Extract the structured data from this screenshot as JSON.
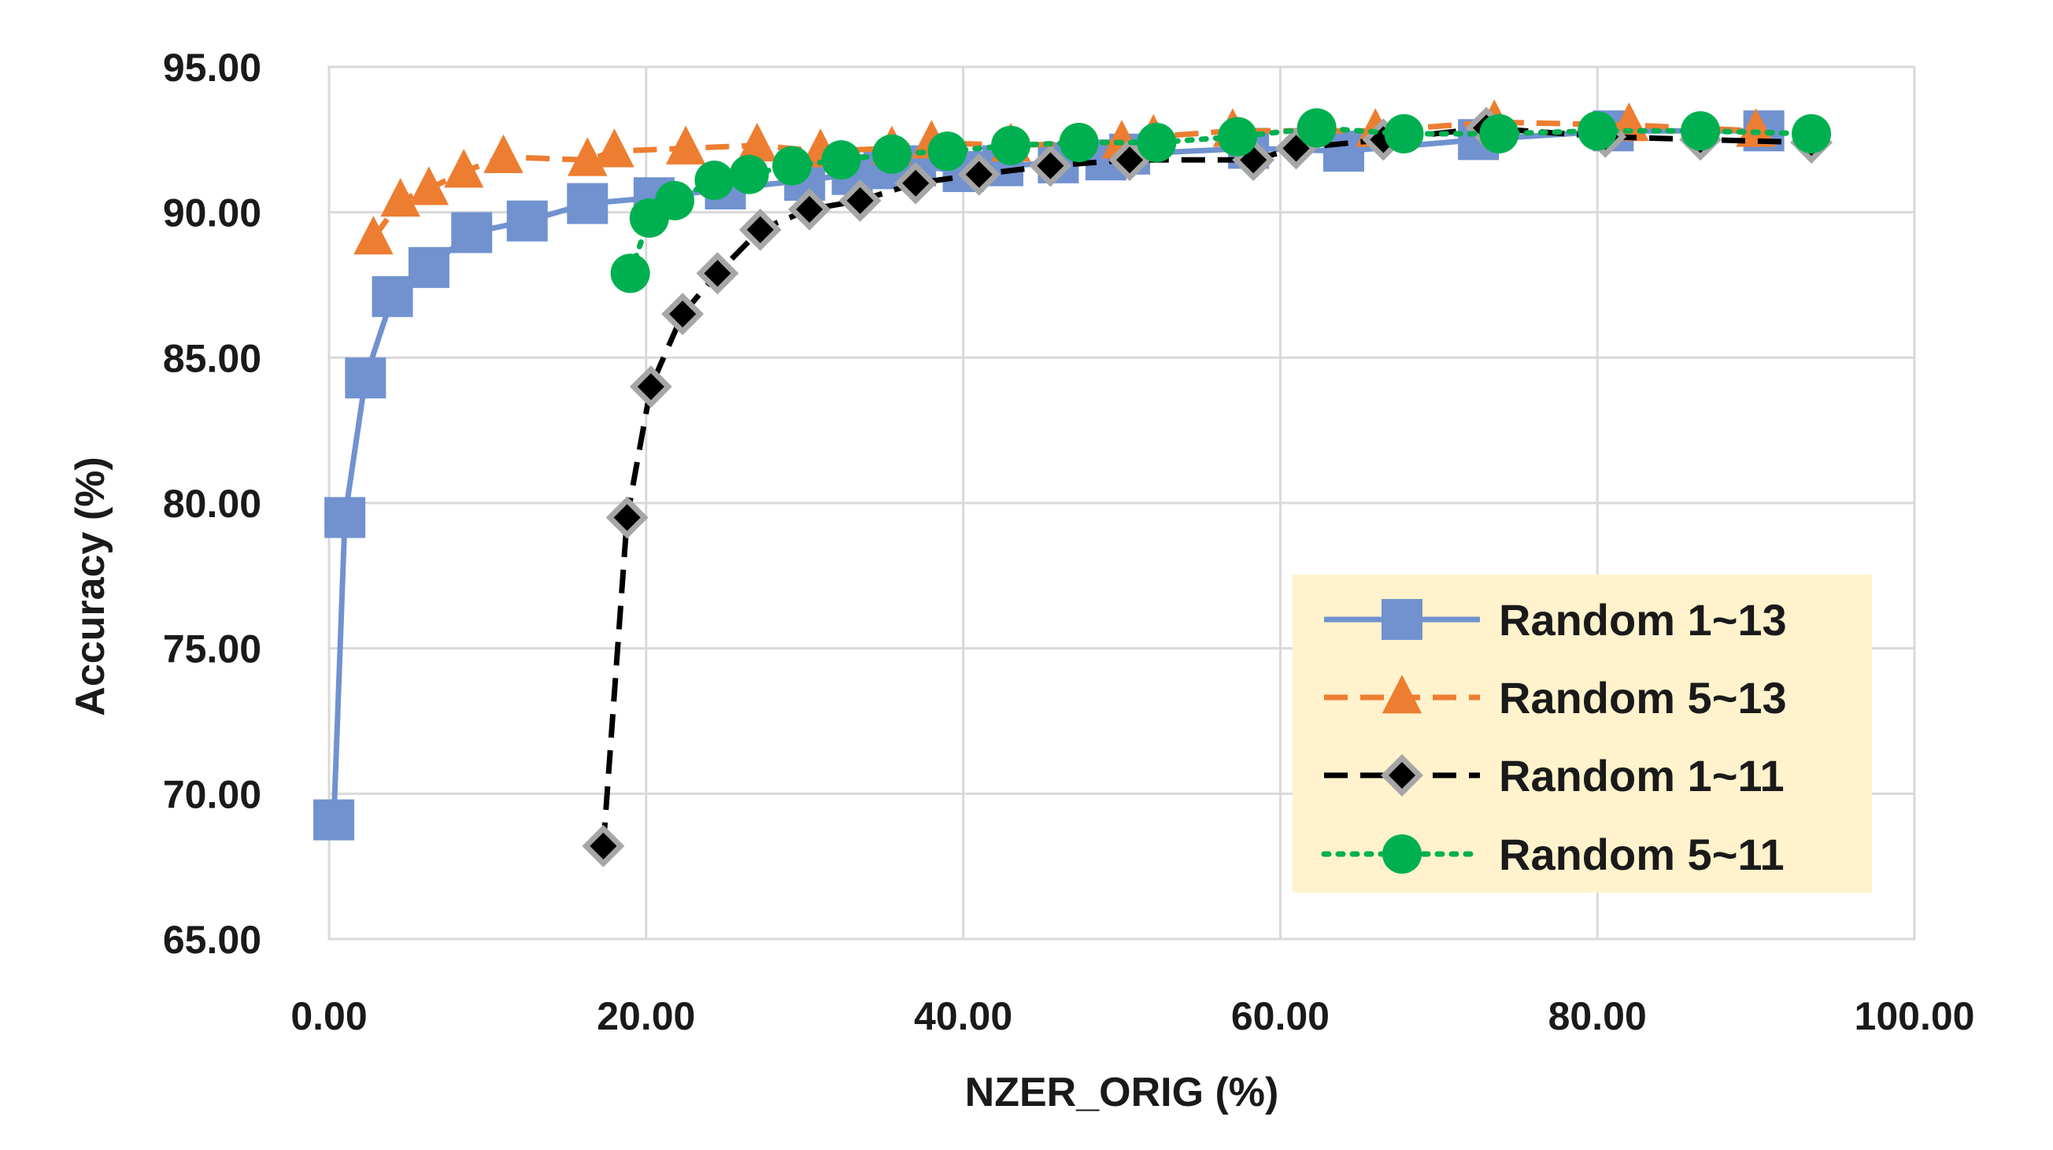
{
  "chart_data": {
    "type": "line",
    "title": "",
    "xlabel": "NZER_ORIG (%)",
    "ylabel": "Accuracy (%)",
    "xlim": [
      0,
      100
    ],
    "ylim": [
      65,
      95
    ],
    "x_ticks": [
      "0.00",
      "20.00",
      "40.00",
      "60.00",
      "80.00",
      "100.00"
    ],
    "y_ticks": [
      "65.00",
      "70.00",
      "75.00",
      "80.00",
      "85.00",
      "90.00",
      "95.00"
    ],
    "grid": true,
    "legend_position": "bottom-right",
    "series": [
      {
        "name": "Random 1~13",
        "color": "#7192cf",
        "line_style": "solid",
        "marker": "square",
        "x": [
          0.3,
          1.0,
          2.3,
          4.0,
          6.3,
          9.0,
          12.5,
          16.3,
          20.5,
          25.0,
          30.0,
          33.0,
          35.0,
          37.0,
          40.0,
          42.5,
          46.0,
          49.0,
          50.5,
          58.0,
          64.0,
          72.5,
          81.0,
          90.5
        ],
        "y": [
          69.1,
          79.5,
          84.3,
          87.1,
          88.1,
          89.3,
          89.7,
          90.3,
          90.5,
          90.8,
          91.1,
          91.3,
          91.5,
          91.6,
          91.4,
          91.6,
          91.7,
          91.8,
          92.0,
          92.2,
          92.1,
          92.5,
          92.8,
          92.8
        ]
      },
      {
        "name": "Random 5~13",
        "color": "#ed7d31",
        "line_style": "dashed",
        "marker": "triangle",
        "x": [
          2.8,
          4.5,
          6.3,
          8.5,
          11.0,
          16.3,
          18.0,
          22.5,
          27.0,
          31.0,
          35.5,
          38.0,
          43.0,
          50.0,
          52.0,
          57.0,
          66.0,
          73.5,
          82.0,
          90.0
        ],
        "y": [
          89.1,
          90.4,
          90.8,
          91.4,
          91.9,
          91.8,
          92.1,
          92.2,
          92.3,
          92.1,
          92.2,
          92.4,
          92.3,
          92.4,
          92.6,
          92.8,
          92.8,
          93.1,
          93.0,
          92.8
        ]
      },
      {
        "name": "Random 1~11",
        "color": "#000000",
        "line_style": "dashed",
        "marker": "diamond",
        "x": [
          17.3,
          18.8,
          20.3,
          22.3,
          24.5,
          27.2,
          30.3,
          33.5,
          37.0,
          41.0,
          45.5,
          50.5,
          58.3,
          61.0,
          66.5,
          73.0,
          80.5,
          86.5,
          93.5
        ],
        "y": [
          68.2,
          79.5,
          84.0,
          86.5,
          87.9,
          89.4,
          90.1,
          90.4,
          91.0,
          91.3,
          91.6,
          91.8,
          91.8,
          92.2,
          92.5,
          92.9,
          92.6,
          92.5,
          92.4
        ]
      },
      {
        "name": "Random 5~11",
        "color": "#00b050",
        "line_style": "dotted",
        "marker": "circle",
        "x": [
          19.0,
          20.2,
          21.8,
          24.3,
          26.5,
          29.2,
          32.3,
          35.5,
          39.0,
          43.0,
          47.3,
          52.2,
          57.3,
          62.3,
          67.8,
          73.8,
          80.0,
          86.5,
          93.5
        ],
        "y": [
          87.9,
          89.8,
          90.4,
          91.1,
          91.3,
          91.6,
          91.8,
          92.0,
          92.1,
          92.3,
          92.4,
          92.4,
          92.6,
          92.9,
          92.7,
          92.7,
          92.8,
          92.8,
          92.7
        ]
      }
    ]
  }
}
